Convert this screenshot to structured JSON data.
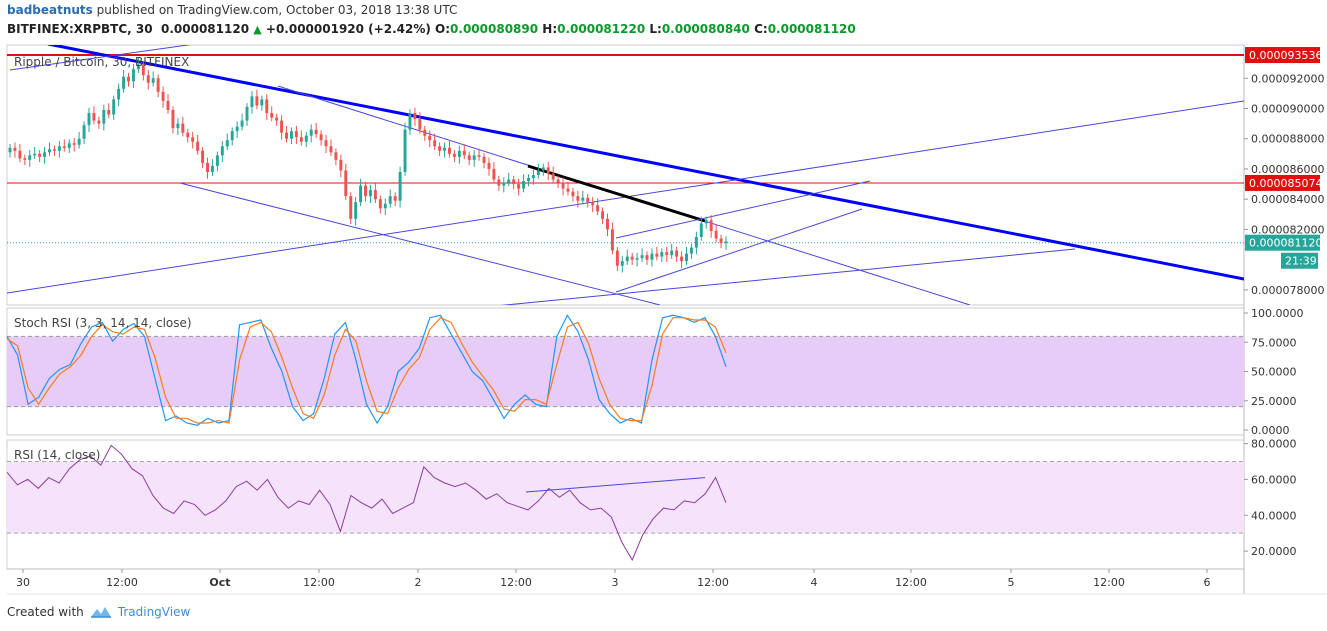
{
  "header": {
    "user": "badbeatnuts",
    "published_text": "published on TradingView.com, October 03, 2018 13:38 UTC",
    "symbol": "BITFINEX:XRPBTC, 30",
    "last": "0.000081120",
    "change": "+0.000001920 (+2.42%)",
    "o_label": "O:",
    "o": "0.000080890",
    "h_label": "H:",
    "h": "0.000081220",
    "l_label": "L:",
    "l": "0.000080840",
    "c_label": "C:",
    "c": "0.000081120"
  },
  "footer": {
    "created_with": "Created with",
    "brand": "TradingView",
    "icon": "tradingview-logo-icon"
  },
  "colors": {
    "up": "#26a69a",
    "down": "#ef5350",
    "trend_blue": "#0000ff",
    "trend_thin": "#4848d8",
    "level_red": "#e01010",
    "stoch_k": "#2196f3",
    "stoch_d": "#f57c20",
    "rsi_line": "#8e3a9e",
    "band_fill_stoch": "#e6ccf7",
    "band_fill_rsi": "#f4e3fb"
  },
  "chart_data": [
    {
      "type": "candlestick",
      "title": "Ripple / Bitcoin, 30, BITFINEX",
      "y_ticks": [
        "0.000092000",
        "0.000090000",
        "0.000088000",
        "0.000086000",
        "0.000084000",
        "0.000082000",
        "0.000078000"
      ],
      "ylim": [
        7.7e-05,
        9.42e-05
      ],
      "x_ticks": [
        "30",
        "12:00",
        "Oct",
        "12:00",
        "2",
        "12:00",
        "3",
        "12:00",
        "4",
        "12:00",
        "5",
        "12:00",
        "6"
      ],
      "price_labels": [
        {
          "value": "0.000093536",
          "y": 9.3536e-05,
          "color": "#e01010"
        },
        {
          "value": "0.000085074",
          "y": 8.5074e-05,
          "color": "#e01010"
        },
        {
          "value": "0.000081120",
          "y": 8.112e-05,
          "color": "#26a69a"
        }
      ],
      "countdown": "21:39",
      "horizontal_levels": [
        9.3536e-05,
        8.5074e-05
      ],
      "last_price": 8.112e-05,
      "closes": [
        8.74e-05,
        8.72e-05,
        8.67e-05,
        8.66e-05,
        8.69e-05,
        8.7e-05,
        8.68e-05,
        8.71e-05,
        8.73e-05,
        8.72e-05,
        8.75e-05,
        8.74e-05,
        8.77e-05,
        8.76e-05,
        8.8e-05,
        8.89e-05,
        8.97e-05,
        8.92e-05,
        8.9e-05,
        8.99e-05,
        8.96e-05,
        9.06e-05,
        9.13e-05,
        9.21e-05,
        9.18e-05,
        9.26e-05,
        9.29e-05,
        9.22e-05,
        9.17e-05,
        9.2e-05,
        9.11e-05,
        9.05e-05,
        8.99e-05,
        8.87e-05,
        8.9e-05,
        8.84e-05,
        8.81e-05,
        8.78e-05,
        8.72e-05,
        8.64e-05,
        8.58e-05,
        8.62e-05,
        8.69e-05,
        8.75e-05,
        8.79e-05,
        8.85e-05,
        8.88e-05,
        8.92e-05,
        9.01e-05,
        9.08e-05,
        9.02e-05,
        9.06e-05,
        8.97e-05,
        8.94e-05,
        8.92e-05,
        8.84e-05,
        8.8e-05,
        8.85e-05,
        8.81e-05,
        8.78e-05,
        8.82e-05,
        8.86e-05,
        8.83e-05,
        8.79e-05,
        8.75e-05,
        8.71e-05,
        8.66e-05,
        8.59e-05,
        8.42e-05,
        8.27e-05,
        8.38e-05,
        8.49e-05,
        8.42e-05,
        8.46e-05,
        8.4e-05,
        8.34e-05,
        8.37e-05,
        8.42e-05,
        8.39e-05,
        8.58e-05,
        8.86e-05,
        8.97e-05,
        8.93e-05,
        8.86e-05,
        8.82e-05,
        8.79e-05,
        8.75e-05,
        8.72e-05,
        8.74e-05,
        8.7e-05,
        8.68e-05,
        8.72e-05,
        8.69e-05,
        8.66e-05,
        8.69e-05,
        8.68e-05,
        8.64e-05,
        8.6e-05,
        8.53e-05,
        8.49e-05,
        8.51e-05,
        8.53e-05,
        8.5e-05,
        8.47e-05,
        8.52e-05,
        8.54e-05,
        8.56e-05,
        8.59e-05,
        8.61e-05,
        8.57e-05,
        8.53e-05,
        8.51e-05,
        8.47e-05,
        8.45e-05,
        8.42e-05,
        8.39e-05,
        8.41e-05,
        8.38e-05,
        8.36e-05,
        8.32e-05,
        8.27e-05,
        8.2e-05,
        8.06e-05,
        7.96e-05,
        7.99e-05,
        8.02e-05,
        8e-05,
        8.01e-05,
        8.03e-05,
        8e-05,
        8.04e-05,
        8.02e-05,
        8.05e-05,
        8.03e-05,
        8.06e-05,
        8.02e-05,
        7.99e-05,
        8.04e-05,
        8.08e-05,
        8.15e-05,
        8.24e-05,
        8.26e-05,
        8.19e-05,
        8.14e-05,
        8.11e-05,
        8.12e-05
      ]
    },
    {
      "type": "line",
      "title": "Stoch RSI (3, 3, 14, 14, close)",
      "y_ticks": [
        "100.0000",
        "75.0000",
        "50.0000",
        "25.0000",
        "0.0000"
      ],
      "ylim": [
        0,
        100
      ],
      "bands": [
        20,
        80
      ],
      "series": [
        {
          "values": [
            80,
            64,
            22,
            28,
            44,
            52,
            56,
            74,
            88,
            92,
            76,
            86,
            91,
            80,
            44,
            8,
            12,
            6,
            4,
            10,
            6,
            8,
            90,
            92,
            94,
            70,
            50,
            20,
            8,
            14,
            44,
            82,
            92,
            60,
            22,
            6,
            20,
            50,
            58,
            70,
            96,
            98,
            82,
            66,
            50,
            42,
            26,
            10,
            22,
            30,
            22,
            20,
            80,
            98,
            84,
            60,
            26,
            14,
            6,
            10,
            6,
            60,
            96,
            98,
            96,
            92,
            96,
            80,
            54
          ]
        },
        {
          "values": [
            78,
            72,
            36,
            22,
            36,
            48,
            54,
            64,
            80,
            90,
            84,
            82,
            88,
            86,
            62,
            28,
            10,
            10,
            6,
            6,
            8,
            6,
            60,
            88,
            92,
            84,
            62,
            36,
            14,
            10,
            30,
            64,
            86,
            76,
            42,
            16,
            14,
            36,
            52,
            62,
            86,
            96,
            92,
            74,
            58,
            46,
            34,
            18,
            16,
            26,
            26,
            22,
            56,
            88,
            92,
            74,
            44,
            22,
            10,
            8,
            8,
            38,
            82,
            96,
            96,
            94,
            94,
            88,
            66
          ]
        }
      ]
    },
    {
      "type": "line",
      "title": "RSI (14, close)",
      "y_ticks": [
        "80.0000",
        "60.0000",
        "40.0000",
        "20.0000"
      ],
      "ylim": [
        10,
        82
      ],
      "bands": [
        30,
        70
      ],
      "series": [
        {
          "values": [
            64,
            57,
            60,
            55,
            61,
            58,
            66,
            71,
            73,
            68,
            79,
            74,
            66,
            62,
            51,
            44,
            41,
            48,
            46,
            40,
            43,
            48,
            56,
            59,
            54,
            60,
            50,
            44,
            48,
            46,
            54,
            46,
            31,
            51,
            47,
            44,
            49,
            41,
            44,
            47,
            67,
            61,
            58,
            56,
            58,
            54,
            49,
            52,
            47,
            45,
            43,
            48,
            55,
            50,
            54,
            47,
            43,
            44,
            39,
            25,
            15,
            29,
            38,
            44,
            43,
            48,
            47,
            52,
            61,
            47
          ]
        }
      ]
    }
  ]
}
